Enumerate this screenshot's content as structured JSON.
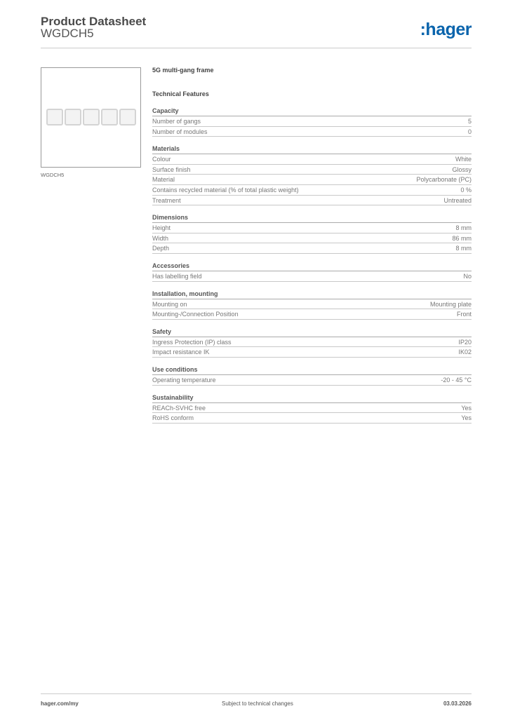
{
  "header": {
    "title": "Product Datasheet",
    "product_code": "WGDCH5",
    "logo": ":hager",
    "brand_color": "#0a64ac"
  },
  "image": {
    "caption": "WGDCH5",
    "gang_count": 5
  },
  "product_name": "5G multi-gang frame",
  "features_title": "Technical Features",
  "sections": [
    {
      "title": "Capacity",
      "rows": [
        {
          "label": "Number of gangs",
          "value": "5"
        },
        {
          "label": "Number of modules",
          "value": "0"
        }
      ]
    },
    {
      "title": "Materials",
      "rows": [
        {
          "label": "Colour",
          "value": "White"
        },
        {
          "label": "Surface finish",
          "value": "Glossy"
        },
        {
          "label": "Material",
          "value": "Polycarbonate (PC)"
        },
        {
          "label": "Contains recycled material (% of total plastic weight)",
          "value": "0 %"
        },
        {
          "label": "Treatment",
          "value": "Untreated"
        }
      ]
    },
    {
      "title": "Dimensions",
      "rows": [
        {
          "label": "Height",
          "value": "8 mm"
        },
        {
          "label": "Width",
          "value": "86 mm"
        },
        {
          "label": "Depth",
          "value": "8 mm"
        }
      ]
    },
    {
      "title": "Accessories",
      "rows": [
        {
          "label": "Has labelling field",
          "value": "No"
        }
      ]
    },
    {
      "title": "Installation, mounting",
      "rows": [
        {
          "label": "Mounting on",
          "value": "Mounting plate"
        },
        {
          "label": "Mounting-/Connection Position",
          "value": "Front"
        }
      ]
    },
    {
      "title": "Safety",
      "rows": [
        {
          "label": "Ingress Protection (IP) class",
          "value": "IP20"
        },
        {
          "label": "Impact resistance IK",
          "value": "IK02"
        }
      ]
    },
    {
      "title": "Use conditions",
      "rows": [
        {
          "label": "Operating temperature",
          "value": "-20 - 45 °C"
        }
      ]
    },
    {
      "title": "Sustainability",
      "rows": [
        {
          "label": "REACh-SVHC free",
          "value": "Yes"
        },
        {
          "label": "RoHS conform",
          "value": "Yes"
        }
      ]
    }
  ],
  "footer": {
    "website": "hager.com/my",
    "notice": "Subject to technical changes",
    "date": "03.03.2026"
  }
}
